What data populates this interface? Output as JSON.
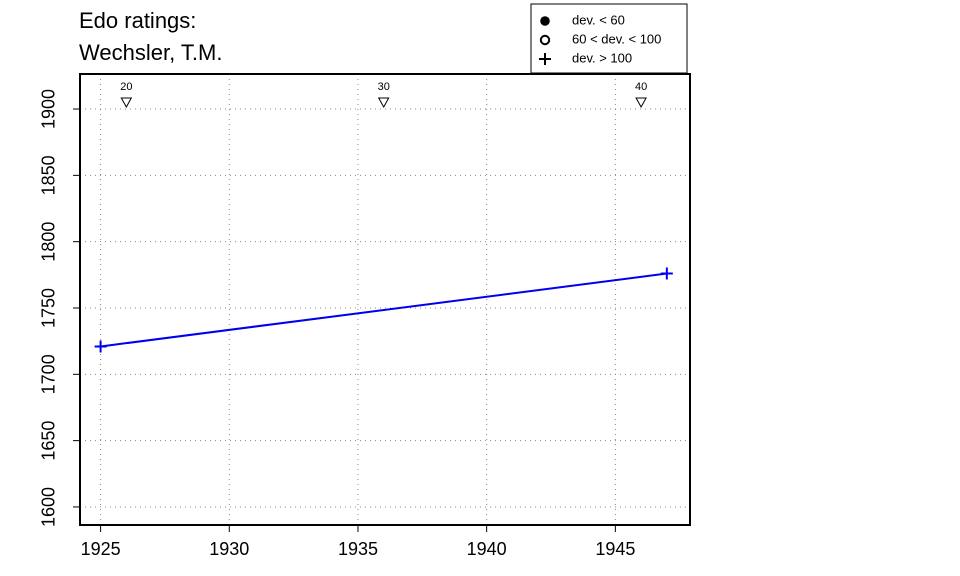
{
  "chart_data": {
    "type": "line",
    "title": "Edo ratings:",
    "subtitle": "Wechsler, T.M.",
    "x": [
      1925,
      1947
    ],
    "series": [
      {
        "color": "#0000ee",
        "marker": "plus",
        "values": [
          1721,
          1776
        ]
      }
    ],
    "xlim": [
      1924.2,
      1947.9
    ],
    "ylim": [
      1586.4,
      1926.4
    ],
    "xticks": [
      1925,
      1930,
      1935,
      1940,
      1945
    ],
    "yticks": [
      1600,
      1650,
      1700,
      1750,
      1800,
      1850,
      1900
    ],
    "grid": true,
    "age_markers": {
      "x": [
        1926,
        1936,
        1946
      ],
      "labels": [
        20,
        30,
        40
      ]
    },
    "legend": {
      "corner": "top-right",
      "entries": [
        {
          "label": "dev. < 60",
          "marker": "filled-circle"
        },
        {
          "label": "60 < dev. < 100",
          "marker": "open-circle"
        },
        {
          "label": "dev. > 100",
          "marker": "plus"
        }
      ]
    }
  }
}
